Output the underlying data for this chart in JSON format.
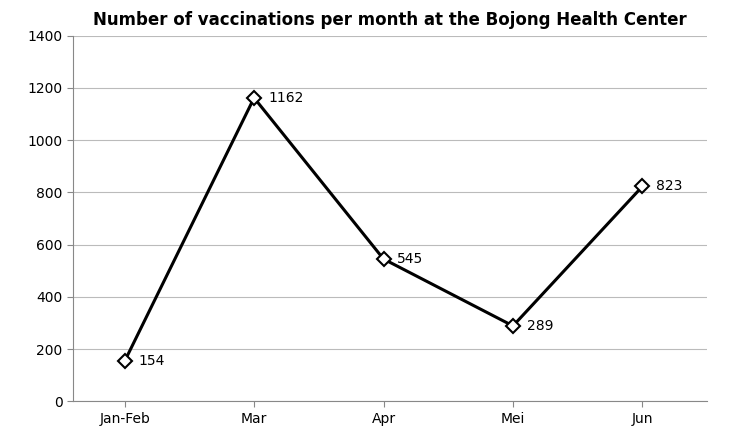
{
  "title": "Number of vaccinations per month at the Bojong Health Center",
  "categories": [
    "Jan-Feb",
    "Mar",
    "Apr",
    "Mei",
    "Jun"
  ],
  "values": [
    154,
    1162,
    545,
    289,
    823
  ],
  "labels": [
    "154",
    "1162",
    "545",
    "289",
    "823"
  ],
  "ylim": [
    0,
    1400
  ],
  "yticks": [
    0,
    200,
    400,
    600,
    800,
    1000,
    1200,
    1400
  ],
  "line_color": "#000000",
  "marker_style": "D",
  "marker_size": 7,
  "marker_facecolor": "#ffffff",
  "marker_edgecolor": "#000000",
  "line_width": 2.2,
  "title_fontsize": 12,
  "label_fontsize": 10,
  "tick_fontsize": 10,
  "background_color": "#ffffff",
  "grid_color": "#bbbbbb",
  "spine_color": "#888888"
}
